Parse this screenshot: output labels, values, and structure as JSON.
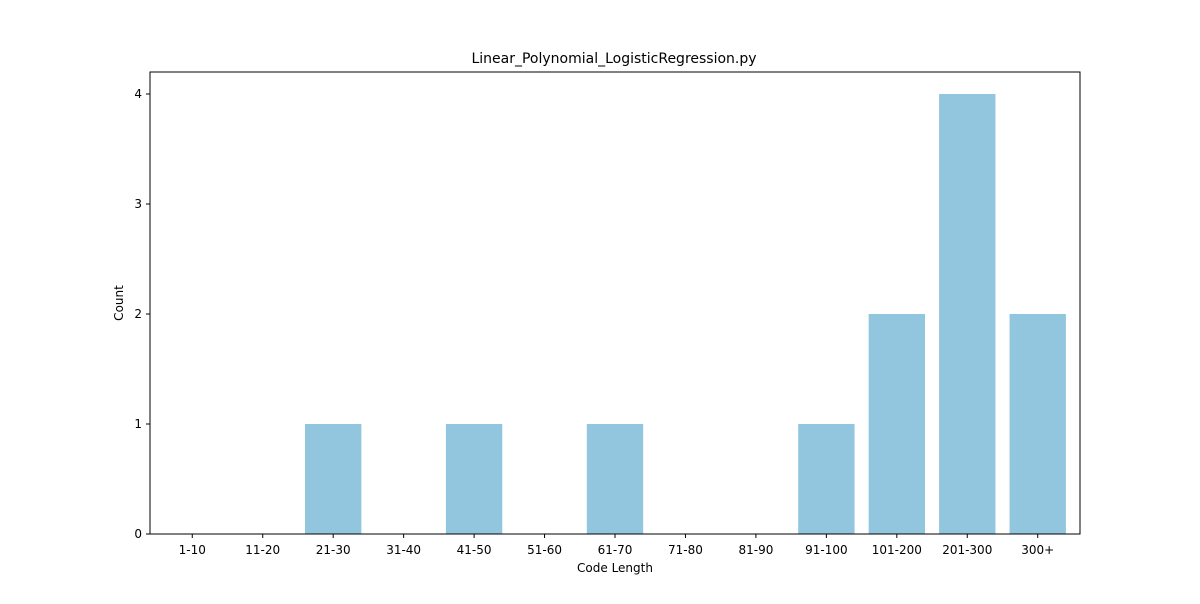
{
  "chart_data": {
    "type": "bar",
    "title": "Linear_Polynomial_LogisticRegression.py",
    "xlabel": "Code Length",
    "ylabel": "Count",
    "categories": [
      "1-10",
      "11-20",
      "21-30",
      "31-40",
      "41-50",
      "51-60",
      "61-70",
      "71-80",
      "81-90",
      "91-100",
      "101-200",
      "201-300",
      "300+"
    ],
    "values": [
      0,
      0,
      1,
      0,
      1,
      0,
      1,
      0,
      0,
      1,
      2,
      4,
      2
    ],
    "ylim": [
      0,
      4.2
    ],
    "yticks": [
      0,
      1,
      2,
      3,
      4
    ],
    "grid": false,
    "bar_color": "#92c5de"
  }
}
